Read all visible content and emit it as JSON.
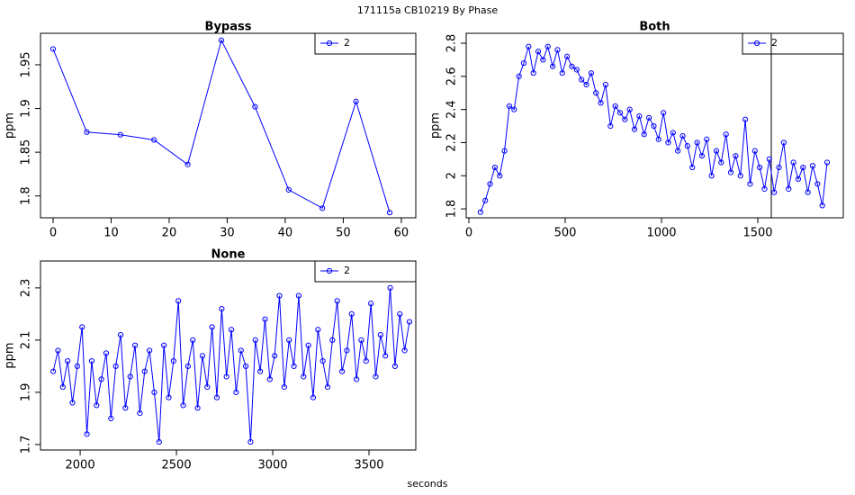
{
  "title": "171115a    CB10219   By Phase",
  "x_label": "seconds",
  "chart_data": [
    {
      "type": "line",
      "title": "Bypass",
      "y_label": "ppm",
      "legend": "top-right",
      "x": [
        0,
        5.8,
        11.6,
        17.4,
        23.2,
        29,
        34.8,
        40.6,
        46.4,
        52.2,
        58
      ],
      "series": [
        {
          "name": "2",
          "color": "#0000ff",
          "values": [
            1.968,
            1.873,
            1.87,
            1.864,
            1.836,
            1.978,
            1.902,
            1.807,
            1.786,
            1.908,
            1.781
          ]
        }
      ],
      "xlim": [
        -2.17,
        62.5
      ],
      "xticks": [
        0,
        10,
        20,
        30,
        40,
        50,
        60
      ],
      "ylim": [
        1.775,
        1.986
      ],
      "yticks": [
        1.8,
        1.85,
        1.9,
        1.95
      ]
    },
    {
      "type": "line",
      "title": "Both",
      "y_label": "ppm",
      "legend": "top-right",
      "vline": 1570,
      "x": [
        60,
        85,
        110,
        135,
        160,
        185,
        210,
        235,
        260,
        285,
        310,
        335,
        360,
        385,
        410,
        435,
        460,
        485,
        510,
        535,
        560,
        585,
        610,
        635,
        660,
        685,
        710,
        735,
        760,
        785,
        810,
        835,
        860,
        885,
        910,
        935,
        960,
        985,
        1010,
        1035,
        1060,
        1085,
        1110,
        1135,
        1160,
        1185,
        1210,
        1235,
        1260,
        1285,
        1310,
        1335,
        1360,
        1385,
        1410,
        1435,
        1460,
        1485,
        1510,
        1535,
        1560,
        1585,
        1610,
        1635,
        1660,
        1685,
        1710,
        1735,
        1760,
        1785,
        1810,
        1835,
        1860
      ],
      "series": [
        {
          "name": "2",
          "color": "#0000ff",
          "values": [
            1.78,
            1.85,
            1.95,
            2.05,
            2.0,
            2.15,
            2.42,
            2.4,
            2.6,
            2.68,
            2.78,
            2.62,
            2.75,
            2.7,
            2.78,
            2.66,
            2.76,
            2.62,
            2.72,
            2.66,
            2.64,
            2.58,
            2.55,
            2.62,
            2.5,
            2.44,
            2.55,
            2.3,
            2.42,
            2.38,
            2.34,
            2.4,
            2.28,
            2.36,
            2.25,
            2.35,
            2.3,
            2.22,
            2.38,
            2.2,
            2.26,
            2.15,
            2.24,
            2.18,
            2.05,
            2.2,
            2.12,
            2.22,
            2.0,
            2.15,
            2.08,
            2.25,
            2.02,
            2.12,
            2.0,
            2.34,
            1.95,
            2.15,
            2.05,
            1.92,
            2.1,
            1.9,
            2.05,
            2.2,
            1.92,
            2.08,
            1.98,
            2.05,
            1.9,
            2.06,
            1.95,
            1.82,
            2.08
          ]
        }
      ],
      "xlim": [
        -14,
        1944
      ],
      "xticks": [
        0,
        500,
        1000,
        1500
      ],
      "ylim": [
        1.746,
        2.86
      ],
      "yticks": [
        1.8,
        2.0,
        2.2,
        2.4,
        2.6,
        2.8
      ]
    },
    {
      "type": "line",
      "title": "None",
      "y_label": "ppm",
      "legend": "top-right",
      "x": [
        1860,
        1885,
        1910,
        1935,
        1960,
        1985,
        2010,
        2035,
        2060,
        2085,
        2110,
        2135,
        2160,
        2185,
        2210,
        2235,
        2260,
        2285,
        2310,
        2335,
        2360,
        2385,
        2410,
        2435,
        2460,
        2485,
        2510,
        2535,
        2560,
        2585,
        2610,
        2635,
        2660,
        2685,
        2710,
        2735,
        2760,
        2785,
        2810,
        2835,
        2860,
        2885,
        2910,
        2935,
        2960,
        2985,
        3010,
        3035,
        3060,
        3085,
        3110,
        3135,
        3160,
        3185,
        3210,
        3235,
        3260,
        3285,
        3310,
        3335,
        3360,
        3385,
        3410,
        3435,
        3460,
        3485,
        3510,
        3535,
        3560,
        3585,
        3610,
        3635,
        3660,
        3685,
        3710
      ],
      "series": [
        {
          "name": "2",
          "color": "#0000ff",
          "values": [
            1.98,
            2.06,
            1.92,
            2.02,
            1.86,
            2.0,
            2.15,
            1.74,
            2.02,
            1.85,
            1.95,
            2.05,
            1.8,
            2.0,
            2.12,
            1.84,
            1.96,
            2.08,
            1.82,
            1.98,
            2.06,
            1.9,
            1.71,
            2.08,
            1.88,
            2.02,
            2.25,
            1.85,
            2.0,
            2.1,
            1.84,
            2.04,
            1.92,
            2.15,
            1.88,
            2.22,
            1.96,
            2.14,
            1.9,
            2.06,
            2.0,
            1.71,
            2.1,
            1.98,
            2.18,
            1.95,
            2.04,
            2.27,
            1.92,
            2.1,
            2.0,
            2.27,
            1.96,
            2.08,
            1.88,
            2.14,
            2.02,
            1.92,
            2.1,
            2.25,
            1.98,
            2.06,
            2.2,
            1.95,
            2.1,
            2.02,
            2.24,
            1.96,
            2.12,
            2.04,
            2.3,
            2.0,
            2.2,
            2.06,
            2.17
          ]
        }
      ],
      "xlim": [
        1794,
        3743
      ],
      "xticks": [
        2000,
        2500,
        3000,
        3500
      ],
      "ylim": [
        1.679,
        2.403
      ],
      "yticks": [
        1.7,
        1.9,
        2.1,
        2.3
      ]
    }
  ]
}
